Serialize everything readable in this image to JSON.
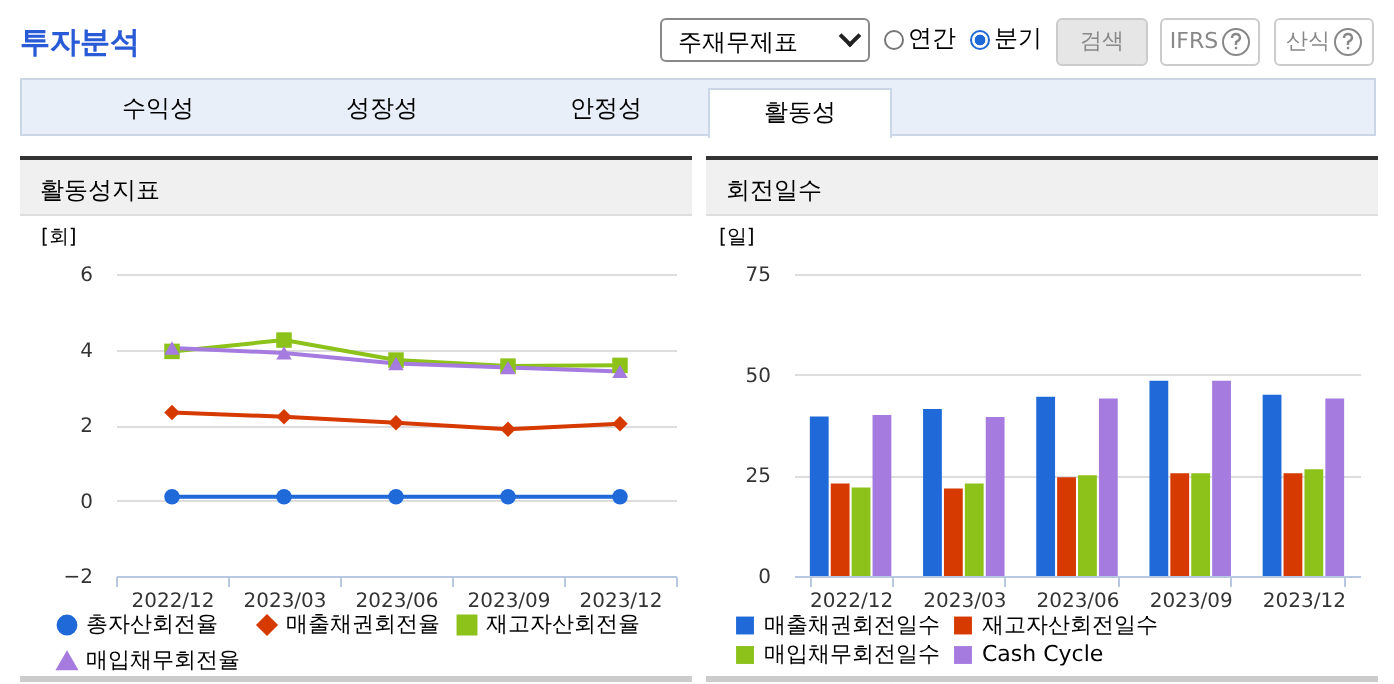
{
  "chart_data": [
    {
      "type": "other",
      "title": "투자분석",
      "annotations": [
        "주재무제표",
        "연간",
        "분기",
        "검색",
        "IFRS",
        "산식",
        "수익성",
        "성장성",
        "안정성",
        "활동성"
      ]
    },
    {
      "type": "line",
      "title": "활동성지표",
      "ylabel": "[회]",
      "categories": [
        "2022/12",
        "2023/03",
        "2023/06",
        "2023/09",
        "2023/12"
      ],
      "ylim": [
        -2,
        6
      ],
      "yticks": [
        -2,
        0,
        2,
        4,
        6
      ],
      "grid": "y",
      "legend": "bottom",
      "line_style": "solid",
      "series": [
        {
          "name": "총자산회전율",
          "color": "#1f6ad8",
          "marker": "circle",
          "values": [
            0.1,
            0.1,
            0.1,
            0.1,
            0.1
          ]
        },
        {
          "name": "매출채권회전율",
          "color": "#d63a00",
          "marker": "diamond",
          "values": [
            2.33,
            2.22,
            2.06,
            1.89,
            2.03
          ]
        },
        {
          "name": "재고자산회전율",
          "color": "#8cc21a",
          "marker": "square",
          "values": [
            3.95,
            4.25,
            3.72,
            3.56,
            3.58
          ]
        },
        {
          "name": "매입채무회전율",
          "color": "#a57be0",
          "marker": "triangle",
          "values": [
            4.04,
            3.91,
            3.63,
            3.52,
            3.42
          ]
        }
      ]
    },
    {
      "type": "bar",
      "title": "회전일수",
      "ylabel": "[일]",
      "categories": [
        "2022/12",
        "2023/03",
        "2023/06",
        "2023/09",
        "2023/12"
      ],
      "ylim": [
        0,
        75
      ],
      "yticks": [
        0,
        25,
        50,
        75
      ],
      "grid": "y",
      "legend": "bottom",
      "series": [
        {
          "name": "매출채권회전일수",
          "color": "#1f6ad8",
          "values": [
            39.6,
            41.5,
            44.5,
            48.5,
            45.0
          ]
        },
        {
          "name": "재고자산회전일수",
          "color": "#d63a00",
          "values": [
            23.0,
            21.7,
            24.5,
            25.5,
            25.5
          ]
        },
        {
          "name": "매입채무회전일수",
          "color": "#8cc21a",
          "values": [
            22.0,
            23.0,
            25.0,
            25.5,
            26.5
          ]
        },
        {
          "name": "Cash Cycle",
          "color": "#a57be0",
          "values": [
            40.0,
            39.5,
            44.1,
            48.5,
            44.1
          ]
        }
      ]
    }
  ]
}
